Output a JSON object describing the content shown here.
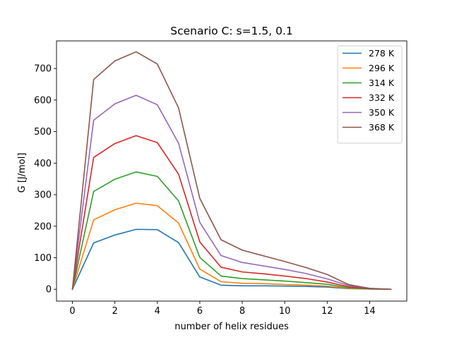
{
  "chart_data": {
    "type": "line",
    "title": "Scenario C: s=1.5, 0.1",
    "xlabel": "number of helix residues",
    "ylabel": "G [J/mol]",
    "xlim": [
      -0.75,
      15.75
    ],
    "ylim": [
      -37.5,
      787.5
    ],
    "xticks": [
      0,
      2,
      4,
      6,
      8,
      10,
      12,
      14
    ],
    "yticks": [
      0,
      100,
      200,
      300,
      400,
      500,
      600,
      700
    ],
    "grid": false,
    "legend_position": "top-right",
    "x": [
      0,
      1,
      2,
      3,
      4,
      5,
      6,
      7,
      8,
      9,
      10,
      11,
      12,
      13,
      14,
      15
    ],
    "series": [
      {
        "name": "278 K",
        "color": "#1f77b4",
        "values": [
          0,
          147,
          172,
          190,
          189,
          148,
          39,
          13,
          11,
          11,
          10,
          9,
          7,
          2,
          1,
          0
        ]
      },
      {
        "name": "296 K",
        "color": "#ff7f0e",
        "values": [
          0,
          220,
          252,
          273,
          265,
          210,
          64,
          24,
          19,
          18,
          15,
          13,
          10,
          3,
          1,
          0
        ]
      },
      {
        "name": "314 K",
        "color": "#2ca02c",
        "values": [
          0,
          310,
          349,
          372,
          358,
          280,
          101,
          42,
          34,
          30,
          26,
          21,
          16,
          5,
          1,
          0
        ]
      },
      {
        "name": "332 K",
        "color": "#d62728",
        "values": [
          0,
          418,
          462,
          487,
          465,
          365,
          150,
          70,
          55,
          49,
          42,
          34,
          23,
          8,
          2,
          0
        ]
      },
      {
        "name": "350 K",
        "color": "#9467bd",
        "values": [
          0,
          536,
          588,
          615,
          585,
          463,
          212,
          107,
          85,
          74,
          63,
          50,
          33,
          12,
          3,
          0
        ]
      },
      {
        "name": "368 K",
        "color": "#8c564b",
        "values": [
          0,
          665,
          724,
          753,
          714,
          575,
          288,
          157,
          124,
          106,
          88,
          69,
          47,
          15,
          3,
          0
        ]
      }
    ]
  }
}
